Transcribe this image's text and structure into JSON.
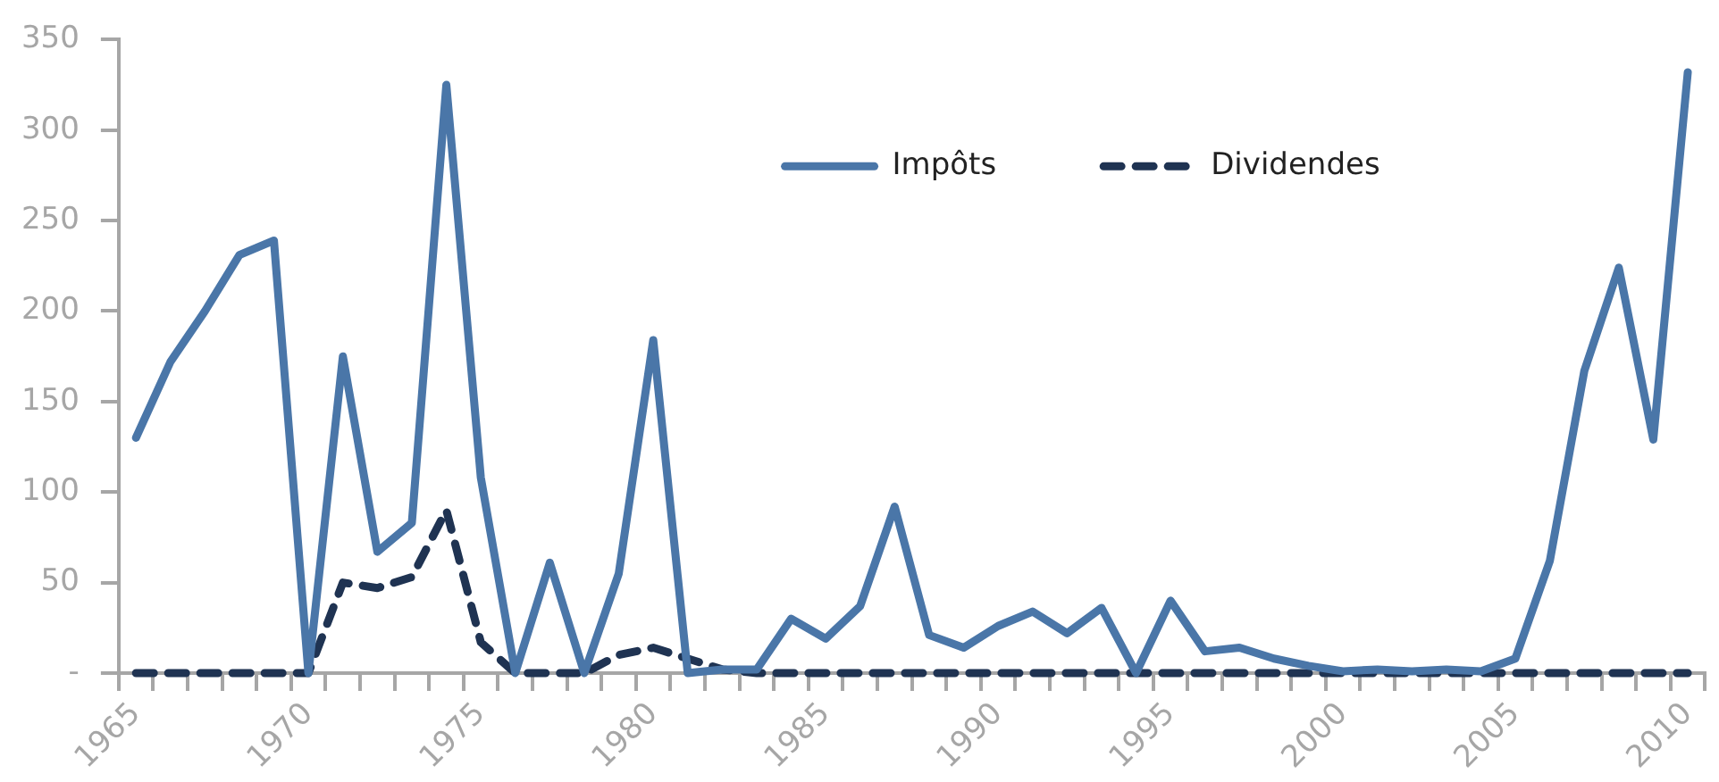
{
  "chart_data": {
    "type": "line",
    "categories": [
      "1965",
      null,
      null,
      null,
      null,
      "1970",
      null,
      null,
      null,
      null,
      "1975",
      null,
      null,
      null,
      null,
      "1980",
      null,
      null,
      null,
      null,
      "1985",
      null,
      null,
      null,
      null,
      "1990",
      null,
      null,
      null,
      null,
      "1995",
      null,
      null,
      null,
      null,
      "2000",
      null,
      null,
      null,
      null,
      "2005",
      null,
      null,
      null,
      null,
      "2010"
    ],
    "series": [
      {
        "name": "Impôts",
        "color": "#4a76a8",
        "line_style": "solid",
        "values": [
          130,
          172,
          200,
          231,
          239,
          0,
          175,
          67,
          83,
          325,
          108,
          0,
          61,
          0,
          55,
          184,
          0,
          2,
          2,
          30,
          19,
          37,
          92,
          21,
          14,
          26,
          34,
          22,
          36,
          0,
          40,
          12,
          14,
          8,
          4,
          1,
          2,
          1,
          2,
          1,
          8,
          62,
          167,
          224,
          129,
          332
        ]
      },
      {
        "name": "Dividendes",
        "color": "#1f3352",
        "line_style": "dashed",
        "values": [
          0,
          0,
          0,
          0,
          0,
          0,
          50,
          47,
          53,
          90,
          17,
          0,
          0,
          0,
          10,
          14,
          8,
          2,
          0,
          0,
          0,
          0,
          0,
          0,
          0,
          0,
          0,
          0,
          0,
          0,
          0,
          0,
          0,
          0,
          0,
          0,
          0,
          0,
          0,
          0,
          0,
          0,
          0,
          0,
          0,
          0
        ]
      }
    ],
    "ylim": [
      0,
      350
    ],
    "yticks": [
      {
        "value": 0,
        "label": "-"
      },
      50,
      100,
      150,
      200,
      250,
      300,
      350
    ],
    "grid": false,
    "legend": "top",
    "marker": "none"
  }
}
